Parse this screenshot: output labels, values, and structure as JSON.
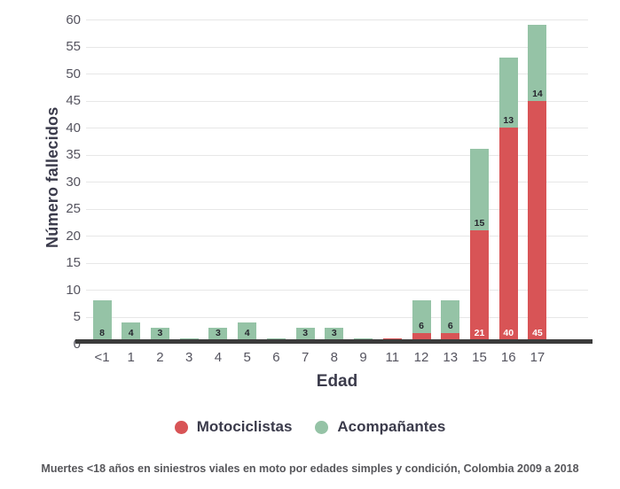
{
  "chart_data": {
    "type": "bar",
    "stacked": true,
    "xlabel": "Edad",
    "ylabel": "Número fallecidos",
    "categories": [
      "<1",
      "1",
      "2",
      "3",
      "4",
      "5",
      "6",
      "7",
      "8",
      "9",
      "11",
      "12",
      "13",
      "15",
      "16",
      "17"
    ],
    "series": [
      {
        "name": "Motociclistas",
        "color": "#d85456",
        "label_color": "#ffffff",
        "values": [
          0,
          0,
          0,
          0,
          0,
          0,
          0,
          0,
          0,
          0,
          1,
          2,
          2,
          21,
          40,
          45
        ]
      },
      {
        "name": "Acompañantes",
        "color": "#95c3a6",
        "label_color": "#26262e",
        "values": [
          8,
          4,
          3,
          1,
          3,
          4,
          1,
          3,
          3,
          1,
          0,
          6,
          6,
          15,
          13,
          14
        ]
      }
    ],
    "ylim": [
      0,
      60
    ],
    "ytick_step": 5,
    "label_min_value": 3,
    "grid": true,
    "legend_position": "bottom"
  },
  "caption": "Muertes <18 años en siniestros viales en moto por edades simples y condición, Colombia 2009 a 2018",
  "colors": {
    "axis_line": "#3b3b3b",
    "gridline": "#e7e7e7",
    "tick_text": "#55545f",
    "title_text": "#3b3b4b",
    "caption_text": "#57575b"
  }
}
